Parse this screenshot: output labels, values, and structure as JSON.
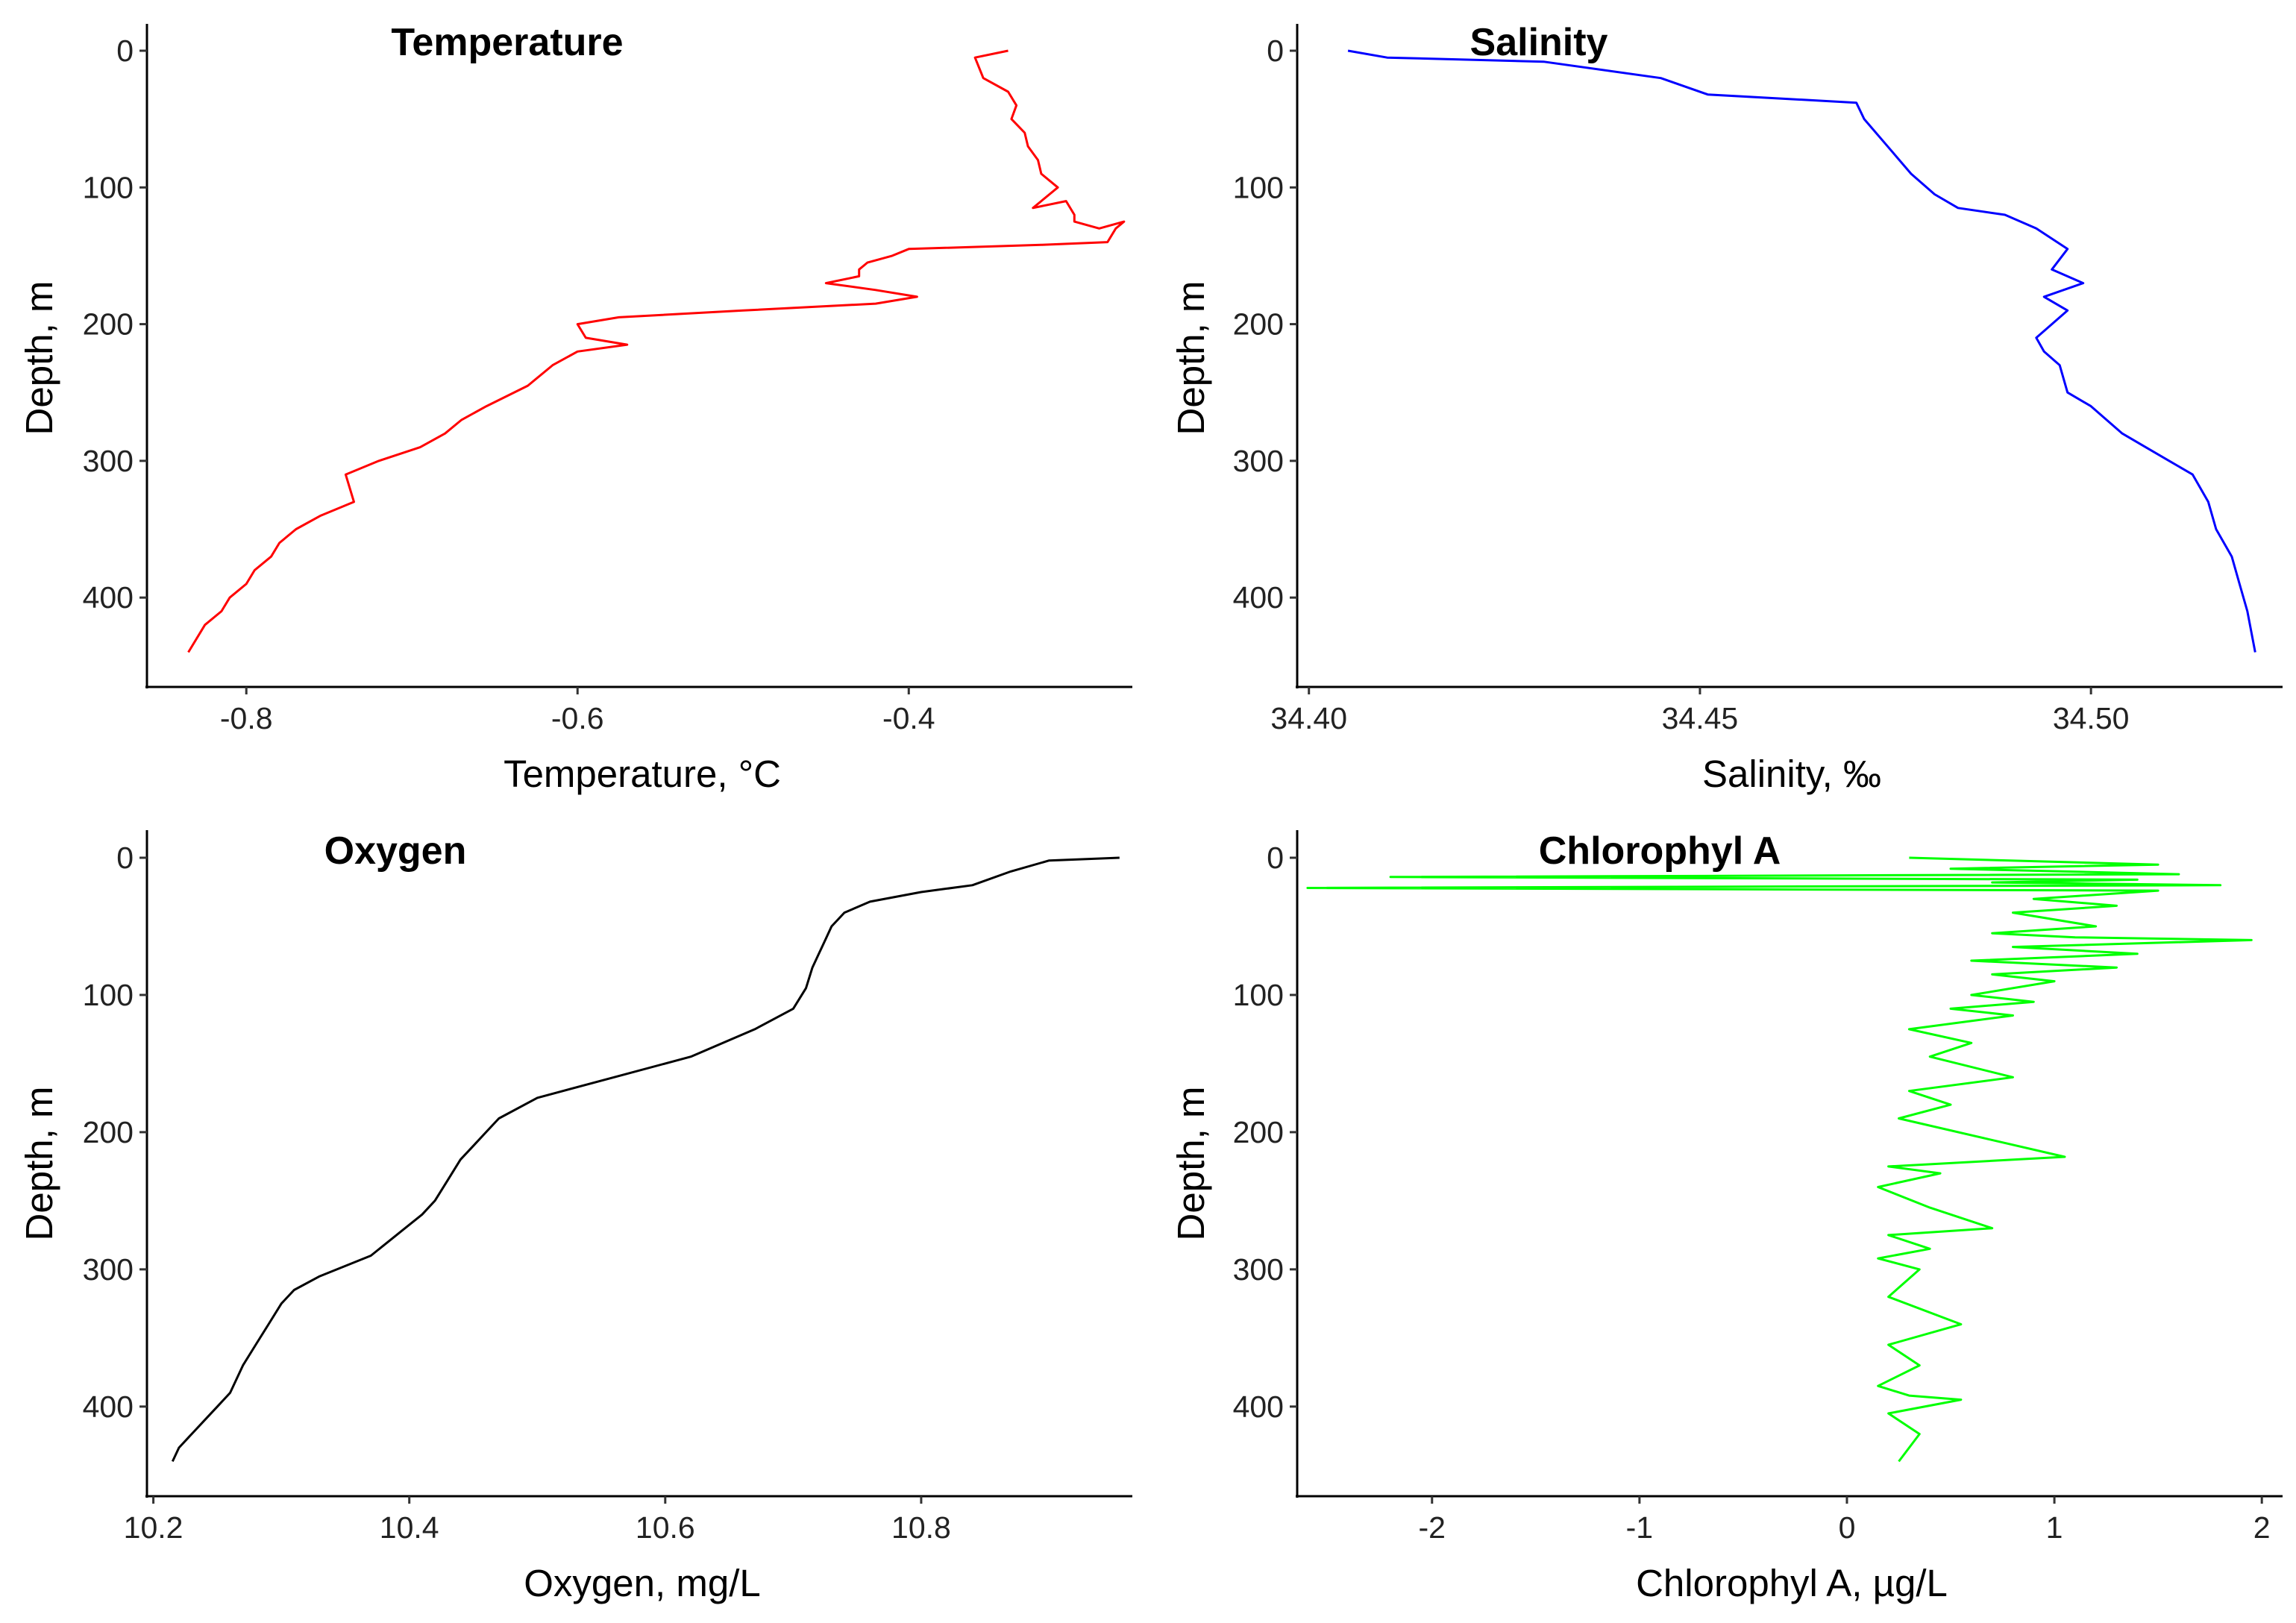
{
  "chart_data": [
    {
      "id": "temperature",
      "type": "line",
      "title": "Temperature",
      "xlabel": "Temperature, °C",
      "ylabel": "Depth, m",
      "color": "#ff0000",
      "xlim": [
        -0.86,
        -0.265
      ],
      "ylim": [
        0,
        455
      ],
      "x_ticks": [
        -0.8,
        -0.6,
        -0.4
      ],
      "x_tick_labels": [
        "-0.8",
        "-0.6",
        "-0.4"
      ],
      "y_ticks": [
        0,
        100,
        200,
        300,
        400
      ],
      "y_tick_labels": [
        "0",
        "100",
        "200",
        "300",
        "400"
      ],
      "series": [
        {
          "name": "Temperature",
          "x": [
            -0.34,
            -0.36,
            -0.355,
            -0.34,
            -0.335,
            -0.338,
            -0.33,
            -0.328,
            -0.322,
            -0.32,
            -0.31,
            -0.32,
            -0.325,
            -0.305,
            -0.3,
            -0.3,
            -0.285,
            -0.27,
            -0.275,
            -0.28,
            -0.32,
            -0.4,
            -0.41,
            -0.425,
            -0.43,
            -0.43,
            -0.45,
            -0.42,
            -0.395,
            -0.42,
            -0.5,
            -0.575,
            -0.6,
            -0.595,
            -0.57,
            -0.6,
            -0.615,
            -0.63,
            -0.655,
            -0.67,
            -0.68,
            -0.695,
            -0.72,
            -0.74,
            -0.735,
            -0.755,
            -0.77,
            -0.78,
            -0.785,
            -0.795,
            -0.8,
            -0.81,
            -0.815,
            -0.825,
            -0.835
          ],
          "y": [
            0,
            5,
            20,
            30,
            40,
            50,
            60,
            70,
            80,
            90,
            100,
            110,
            115,
            110,
            120,
            125,
            130,
            125,
            130,
            140,
            142,
            145,
            150,
            155,
            160,
            165,
            170,
            175,
            180,
            185,
            190,
            195,
            200,
            210,
            215,
            220,
            230,
            245,
            260,
            270,
            280,
            290,
            300,
            310,
            330,
            340,
            350,
            360,
            370,
            380,
            390,
            400,
            410,
            420,
            440
          ]
        }
      ]
    },
    {
      "id": "salinity",
      "type": "line",
      "title": "Salinity",
      "xlabel": "Salinity, ‰",
      "ylabel": "Depth, m",
      "color": "#0000ff",
      "xlim": [
        34.3985,
        34.5245
      ],
      "ylim": [
        0,
        455
      ],
      "x_ticks": [
        34.4,
        34.45,
        34.5
      ],
      "x_tick_labels": [
        "34.40",
        "34.45",
        "34.50"
      ],
      "y_ticks": [
        0,
        100,
        200,
        300,
        400
      ],
      "y_tick_labels": [
        "0",
        "100",
        "200",
        "300",
        "400"
      ],
      "series": [
        {
          "name": "Salinity",
          "x": [
            34.405,
            34.41,
            34.43,
            34.445,
            34.451,
            34.47,
            34.471,
            34.474,
            34.477,
            34.48,
            34.483,
            34.489,
            34.493,
            34.497,
            34.495,
            34.499,
            34.494,
            34.497,
            34.495,
            34.493,
            34.494,
            34.496,
            34.497,
            34.5,
            34.504,
            34.507,
            34.51,
            34.513,
            34.515,
            34.516,
            34.518,
            34.519,
            34.52,
            34.521
          ],
          "y": [
            0,
            5,
            8,
            20,
            32,
            38,
            50,
            70,
            90,
            105,
            115,
            120,
            130,
            145,
            160,
            170,
            180,
            190,
            200,
            210,
            220,
            230,
            250,
            260,
            280,
            290,
            300,
            310,
            330,
            350,
            370,
            390,
            410,
            440
          ]
        }
      ]
    },
    {
      "id": "oxygen",
      "type": "line",
      "title": "Oxygen",
      "xlabel": "Oxygen, mg/L",
      "ylabel": "Depth, m",
      "color": "#000000",
      "xlim": [
        10.195,
        10.965
      ],
      "ylim": [
        0,
        455
      ],
      "x_ticks": [
        10.2,
        10.4,
        10.6,
        10.8
      ],
      "x_tick_labels": [
        "10.2",
        "10.4",
        "10.6",
        "10.8"
      ],
      "y_ticks": [
        0,
        100,
        200,
        300,
        400
      ],
      "y_tick_labels": [
        "0",
        "100",
        "200",
        "300",
        "400"
      ],
      "series": [
        {
          "name": "Oxygen",
          "x": [
            10.955,
            10.9,
            10.87,
            10.84,
            10.8,
            10.76,
            10.74,
            10.73,
            10.725,
            10.72,
            10.715,
            10.71,
            10.7,
            10.67,
            10.62,
            10.56,
            10.5,
            10.47,
            10.46,
            10.45,
            10.44,
            10.43,
            10.42,
            10.41,
            10.39,
            10.37,
            10.33,
            10.31,
            10.3,
            10.29,
            10.28,
            10.27,
            10.265,
            10.26,
            10.25,
            10.24,
            10.23,
            10.22,
            10.215
          ],
          "y": [
            0,
            2,
            10,
            20,
            25,
            32,
            40,
            50,
            60,
            70,
            80,
            95,
            110,
            125,
            145,
            160,
            175,
            190,
            200,
            210,
            220,
            235,
            250,
            260,
            275,
            290,
            305,
            315,
            325,
            340,
            355,
            370,
            380,
            390,
            400,
            410,
            420,
            430,
            440
          ]
        }
      ]
    },
    {
      "id": "chlorophyll",
      "type": "line",
      "title": "Chlorophyl A",
      "xlabel": "Chlorophyl A, µg/L",
      "ylabel": "Depth, m",
      "color": "#00ff00",
      "xlim": [
        -2.65,
        2.1
      ],
      "ylim": [
        0,
        455
      ],
      "x_ticks": [
        -2,
        -1,
        0,
        1,
        2
      ],
      "x_tick_labels": [
        "-2",
        "-1",
        "0",
        "1",
        "2"
      ],
      "y_ticks": [
        0,
        100,
        200,
        300,
        400
      ],
      "y_tick_labels": [
        "0",
        "100",
        "200",
        "300",
        "400"
      ],
      "series": [
        {
          "name": "Chlorophyl A",
          "x": [
            0.3,
            1.5,
            0.5,
            1.6,
            -2.2,
            1.4,
            0.7,
            1.8,
            -2.6,
            1.5,
            0.9,
            1.3,
            0.8,
            1.2,
            0.7,
            1.1,
            1.95,
            0.8,
            1.4,
            0.6,
            1.3,
            0.7,
            1.0,
            0.6,
            0.9,
            0.5,
            0.8,
            0.3,
            0.6,
            0.4,
            0.8,
            0.3,
            0.5,
            0.25,
            1.05,
            0.2,
            0.45,
            0.15,
            0.4,
            0.7,
            0.2,
            0.4,
            0.15,
            0.35,
            0.2,
            0.55,
            0.2,
            0.35,
            0.15,
            0.3,
            0.55,
            0.2,
            0.35,
            0.25
          ],
          "y": [
            0,
            5,
            8,
            12,
            14,
            16,
            18,
            20,
            22,
            24,
            30,
            35,
            40,
            50,
            55,
            58,
            60,
            65,
            70,
            75,
            80,
            85,
            90,
            100,
            105,
            110,
            115,
            125,
            135,
            145,
            160,
            170,
            180,
            190,
            218,
            225,
            230,
            240,
            255,
            270,
            275,
            285,
            292,
            300,
            320,
            340,
            355,
            370,
            385,
            392,
            395,
            405,
            420,
            440
          ]
        }
      ]
    }
  ]
}
